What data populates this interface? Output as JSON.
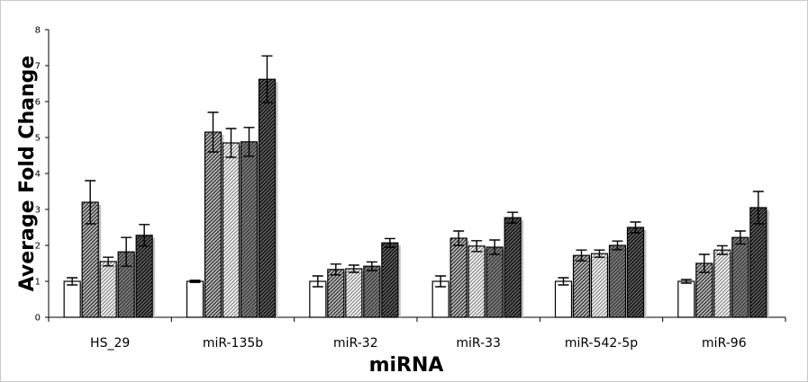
{
  "chart_data": {
    "type": "bar",
    "xlabel": "miRNA",
    "ylabel": "Average Fold Change",
    "ylim": [
      0,
      8
    ],
    "yticks": [
      "0",
      "1",
      "2",
      "3",
      "4",
      "5",
      "6",
      "7",
      "8"
    ],
    "grid": false,
    "legend": "none",
    "categories": [
      "HS_29",
      "miR-135b",
      "miR-32",
      "miR-33",
      "miR-542-5p",
      "miR-96"
    ],
    "series": [
      {
        "fill": "white",
        "values": [
          1.0,
          1.0,
          1.0,
          1.0,
          1.0,
          1.0
        ],
        "errors": [
          0.1,
          0.03,
          0.15,
          0.15,
          0.1,
          0.05
        ]
      },
      {
        "fill": "light-gray-hatched",
        "values": [
          3.2,
          5.15,
          1.33,
          2.2,
          1.72,
          1.5
        ],
        "errors": [
          0.6,
          0.55,
          0.15,
          0.2,
          0.15,
          0.25
        ]
      },
      {
        "fill": "white-hatched",
        "values": [
          1.55,
          4.85,
          1.35,
          1.98,
          1.77,
          1.87
        ],
        "errors": [
          0.12,
          0.4,
          0.1,
          0.15,
          0.1,
          0.12
        ]
      },
      {
        "fill": "gray-hatched",
        "values": [
          1.82,
          4.88,
          1.42,
          1.95,
          2.0,
          2.22
        ],
        "errors": [
          0.4,
          0.4,
          0.12,
          0.2,
          0.12,
          0.18
        ]
      },
      {
        "fill": "black-hatched",
        "values": [
          2.28,
          6.62,
          2.07,
          2.77,
          2.5,
          3.05
        ],
        "errors": [
          0.3,
          0.65,
          0.12,
          0.15,
          0.15,
          0.45
        ]
      }
    ],
    "colors": {
      "s0": "#ffffff",
      "s1_bg": "#bdbdbd",
      "s1_line": "#1a1a1a",
      "s2_bg": "#f3f3f3",
      "s2_line": "#6a6a6a",
      "s3_bg": "#808080",
      "s3_line": "#2a2a2a",
      "s4_bg": "#151515",
      "s4_line": "#7a7a7a",
      "shadow": "#c2c2c2"
    }
  }
}
